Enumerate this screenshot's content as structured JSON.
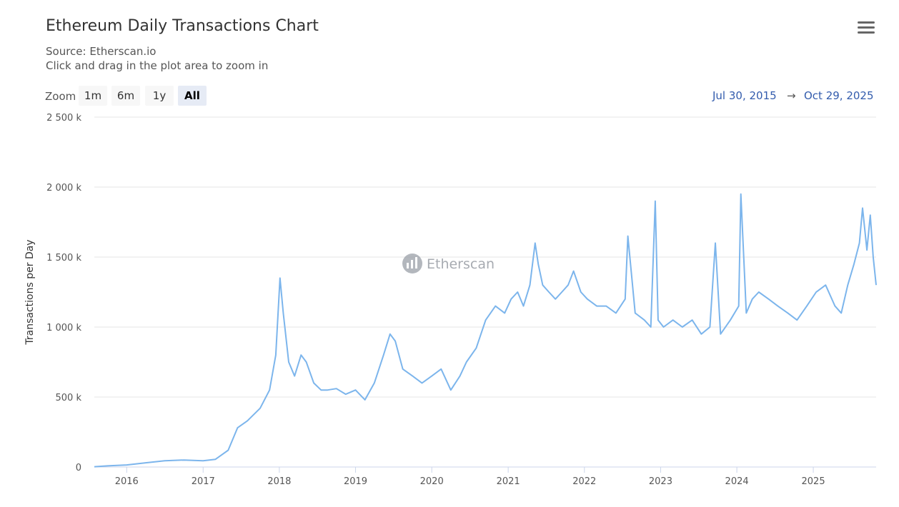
{
  "header": {
    "title": "Ethereum Daily Transactions Chart",
    "source": "Source: Etherscan.io",
    "hint": "Click and drag in the plot area to zoom in",
    "menu_icon": "hamburger-menu-icon"
  },
  "zoom": {
    "label": "Zoom",
    "buttons": [
      "1m",
      "6m",
      "1y",
      "All"
    ],
    "active": "All"
  },
  "range": {
    "from": "Jul 30, 2015",
    "arrow": "→",
    "to": "Oct 29, 2025"
  },
  "watermark": {
    "text": "Etherscan",
    "icon": "etherscan-logo-icon"
  },
  "colors": {
    "series": "#7cb5ec",
    "grid": "#e6e6e6",
    "axis": "#ccd6eb"
  },
  "chart_data": {
    "type": "line",
    "ylabel": "Transactions per Day",
    "ylim": [
      0,
      2500000
    ],
    "yticks": [
      0,
      500000,
      1000000,
      1500000,
      2000000,
      2500000
    ],
    "ytick_labels": [
      "0",
      "500 k",
      "1 000 k",
      "1 500 k",
      "2 000 k",
      "2 500 k"
    ],
    "xlim": [
      "2015-07-30",
      "2025-10-29"
    ],
    "xtick_labels": [
      "2016",
      "2017",
      "2018",
      "2019",
      "2020",
      "2021",
      "2022",
      "2023",
      "2024",
      "2025"
    ],
    "grid": true,
    "legend": "none",
    "series": [
      {
        "x": [
          "2015-07-30",
          "2015-10-01",
          "2016-01-01",
          "2016-04-01",
          "2016-07-01",
          "2016-10-01",
          "2017-01-01",
          "2017-03-01",
          "2017-05-01",
          "2017-06-15",
          "2017-08-01",
          "2017-10-01",
          "2017-11-15",
          "2017-12-15",
          "2018-01-04",
          "2018-01-20",
          "2018-02-15",
          "2018-03-15",
          "2018-04-15",
          "2018-05-10",
          "2018-06-15",
          "2018-07-20",
          "2018-08-20",
          "2018-10-01",
          "2018-11-15",
          "2019-01-01",
          "2019-02-15",
          "2019-04-01",
          "2019-05-15",
          "2019-06-15",
          "2019-07-10",
          "2019-08-15",
          "2019-10-01",
          "2019-11-15",
          "2020-01-01",
          "2020-02-15",
          "2020-04-01",
          "2020-05-15",
          "2020-06-15",
          "2020-08-01",
          "2020-09-15",
          "2020-11-01",
          "2020-12-15",
          "2021-01-15",
          "2021-02-15",
          "2021-03-15",
          "2021-04-15",
          "2021-05-10",
          "2021-05-25",
          "2021-06-15",
          "2021-07-15",
          "2021-08-15",
          "2021-09-15",
          "2021-10-15",
          "2021-11-10",
          "2021-12-15",
          "2022-01-15",
          "2022-03-01",
          "2022-04-15",
          "2022-06-01",
          "2022-07-15",
          "2022-07-28",
          "2022-09-01",
          "2022-10-15",
          "2022-11-15",
          "2022-12-06",
          "2022-12-20",
          "2023-01-15",
          "2023-03-01",
          "2023-04-15",
          "2023-06-01",
          "2023-07-15",
          "2023-08-25",
          "2023-09-20",
          "2023-10-15",
          "2023-12-01",
          "2024-01-10",
          "2024-01-20",
          "2024-02-15",
          "2024-03-15",
          "2024-04-15",
          "2024-06-01",
          "2024-07-15",
          "2024-09-01",
          "2024-10-15",
          "2024-12-01",
          "2025-01-15",
          "2025-03-01",
          "2025-04-15",
          "2025-05-15",
          "2025-06-15",
          "2025-07-15",
          "2025-08-10",
          "2025-08-25",
          "2025-09-15",
          "2025-10-01",
          "2025-10-15",
          "2025-10-29"
        ],
        "y": [
          2000,
          8000,
          15000,
          30000,
          45000,
          50000,
          45000,
          55000,
          120000,
          280000,
          330000,
          420000,
          550000,
          800000,
          1350000,
          1100000,
          750000,
          650000,
          800000,
          750000,
          600000,
          550000,
          550000,
          560000,
          520000,
          550000,
          480000,
          600000,
          800000,
          950000,
          900000,
          700000,
          650000,
          600000,
          650000,
          700000,
          550000,
          650000,
          750000,
          850000,
          1050000,
          1150000,
          1100000,
          1200000,
          1250000,
          1150000,
          1300000,
          1600000,
          1450000,
          1300000,
          1250000,
          1200000,
          1250000,
          1300000,
          1400000,
          1250000,
          1200000,
          1150000,
          1150000,
          1100000,
          1200000,
          1650000,
          1100000,
          1050000,
          1000000,
          1900000,
          1050000,
          1000000,
          1050000,
          1000000,
          1050000,
          950000,
          1000000,
          1600000,
          950000,
          1050000,
          1150000,
          1950000,
          1100000,
          1200000,
          1250000,
          1200000,
          1150000,
          1100000,
          1050000,
          1150000,
          1250000,
          1300000,
          1150000,
          1100000,
          1300000,
          1450000,
          1600000,
          1850000,
          1550000,
          1800000,
          1500000,
          1300000
        ]
      }
    ]
  }
}
